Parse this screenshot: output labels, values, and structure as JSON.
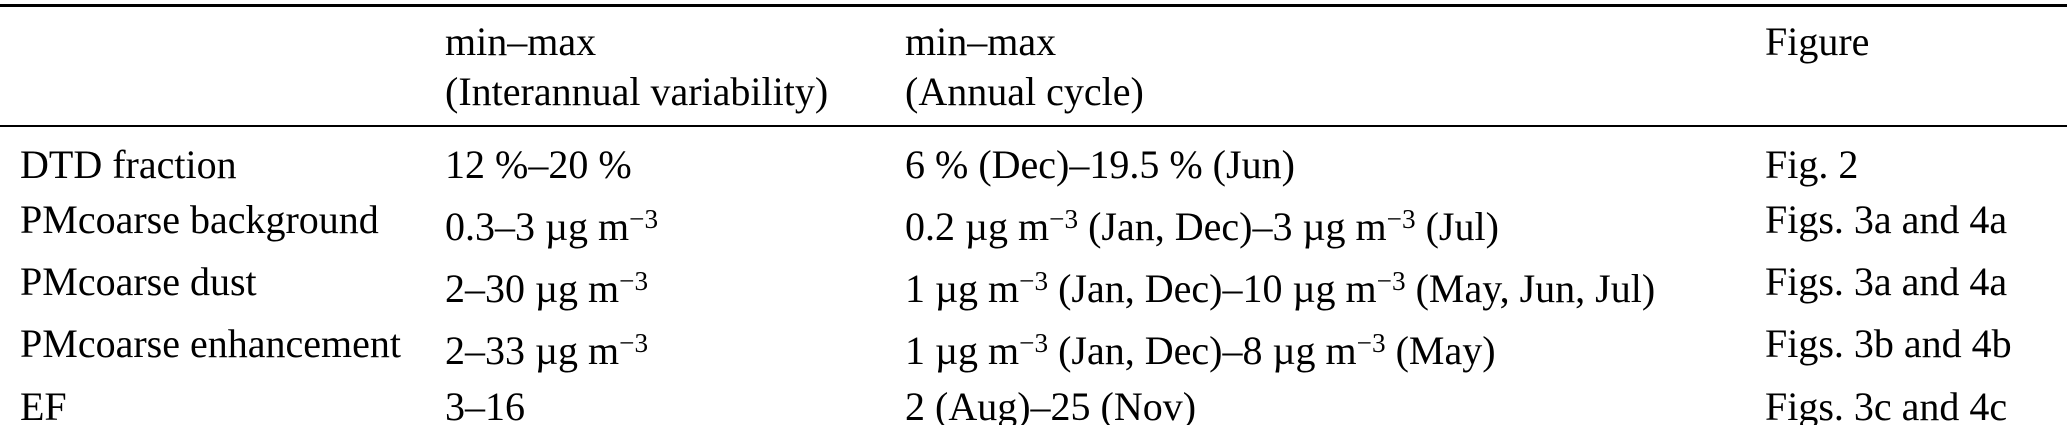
{
  "colors": {
    "background": "#ffffff",
    "text": "#000000",
    "rule": "#000000"
  },
  "table": {
    "headers": {
      "parameter": "",
      "interannual_line1": "min–max",
      "interannual_line2": "(Interannual variability)",
      "annual_line1": "min–max",
      "annual_line2": "(Annual cycle)",
      "figure": "Figure"
    },
    "rows": [
      {
        "label": "DTD fraction",
        "interannual": "12 %–20 %",
        "annual": "6 % (Dec)–19.5 % (Jun)",
        "figure": "Fig. 2"
      },
      {
        "label": "PMcoarse background",
        "interannual": "0.3–3 µg m^{−3}",
        "annual": "0.2 µg m^{−3} (Jan, Dec)–3 µg m^{−3} (Jul)",
        "figure": "Figs. 3a and 4a"
      },
      {
        "label": "PMcoarse dust",
        "interannual": "2–30 µg m^{−3}",
        "annual": "1 µg m^{−3} (Jan, Dec)–10 µg m^{−3} (May, Jun, Jul)",
        "figure": "Figs. 3a and 4a"
      },
      {
        "label": "PMcoarse enhancement",
        "interannual": "2–33 µg m^{−3}",
        "annual": "1 µg m^{−3} (Jan, Dec)–8 µg m^{−3} (May)",
        "figure": "Figs. 3b and 4b"
      },
      {
        "label": "EF",
        "interannual": "3–16",
        "annual": "2 (Aug)–25 (Nov)",
        "figure": "Figs. 3c and 4c"
      }
    ]
  }
}
